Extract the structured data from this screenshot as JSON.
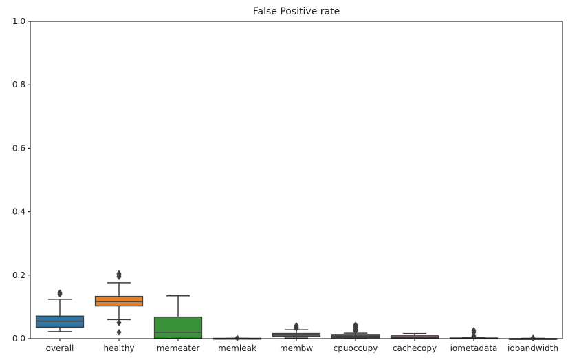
{
  "chart_data": {
    "type": "box",
    "title": "False Positive rate",
    "xlabel": "",
    "ylabel": "",
    "ylim": [
      0,
      1
    ],
    "yticks": [
      0.0,
      0.2,
      0.4,
      0.6,
      0.8,
      1.0
    ],
    "ytick_labels": [
      "0.0",
      "0.2",
      "0.4",
      "0.6",
      "0.8",
      "1.0"
    ],
    "grid": false,
    "categories": [
      "overall",
      "healthy",
      "memeater",
      "memleak",
      "membw",
      "cpuoccupy",
      "cachecopy",
      "iometadata",
      "iobandwidth"
    ],
    "boxes": [
      {
        "name": "overall",
        "color": "#3274a1",
        "whisker_low": 0.022,
        "q1": 0.036,
        "median": 0.055,
        "q3": 0.071,
        "whisker_high": 0.124,
        "outliers": [
          0.14,
          0.145
        ]
      },
      {
        "name": "healthy",
        "color": "#e1812c",
        "whisker_low": 0.06,
        "q1": 0.103,
        "median": 0.117,
        "q3": 0.133,
        "whisker_high": 0.176,
        "outliers": [
          0.02,
          0.05,
          0.195,
          0.2,
          0.205
        ]
      },
      {
        "name": "memeater",
        "color": "#3a923a",
        "whisker_low": 0.0,
        "q1": 0.001,
        "median": 0.02,
        "q3": 0.068,
        "whisker_high": 0.135,
        "outliers": []
      },
      {
        "name": "memleak",
        "color": "#c03d3e",
        "whisker_low": 0.0,
        "q1": 0.0,
        "median": 0.0,
        "q3": 0.001,
        "whisker_high": 0.001,
        "outliers": [
          0.002
        ]
      },
      {
        "name": "membw",
        "color": "#9372b2",
        "whisker_low": 0.002,
        "q1": 0.007,
        "median": 0.011,
        "q3": 0.016,
        "whisker_high": 0.028,
        "outliers": [
          0.032,
          0.036,
          0.041
        ]
      },
      {
        "name": "cpuoccupy",
        "color": "#845b53",
        "whisker_low": 0.0,
        "q1": 0.003,
        "median": 0.007,
        "q3": 0.011,
        "whisker_high": 0.017,
        "outliers": [
          0.024,
          0.03,
          0.037,
          0.043
        ]
      },
      {
        "name": "cachecopy",
        "color": "#d684bd",
        "whisker_low": 0.0,
        "q1": 0.002,
        "median": 0.005,
        "q3": 0.009,
        "whisker_high": 0.016,
        "outliers": []
      },
      {
        "name": "iometadata",
        "color": "#7f7f7f",
        "whisker_low": 0.0,
        "q1": 0.0,
        "median": 0.001,
        "q3": 0.002,
        "whisker_high": 0.003,
        "outliers": [
          0.008,
          0.02,
          0.026
        ]
      },
      {
        "name": "iobandwidth",
        "color": "#a9aa35",
        "whisker_low": 0.0,
        "q1": 0.0,
        "median": 0.0,
        "q3": 0.0,
        "whisker_high": 0.001,
        "outliers": [
          0.002
        ]
      }
    ]
  }
}
